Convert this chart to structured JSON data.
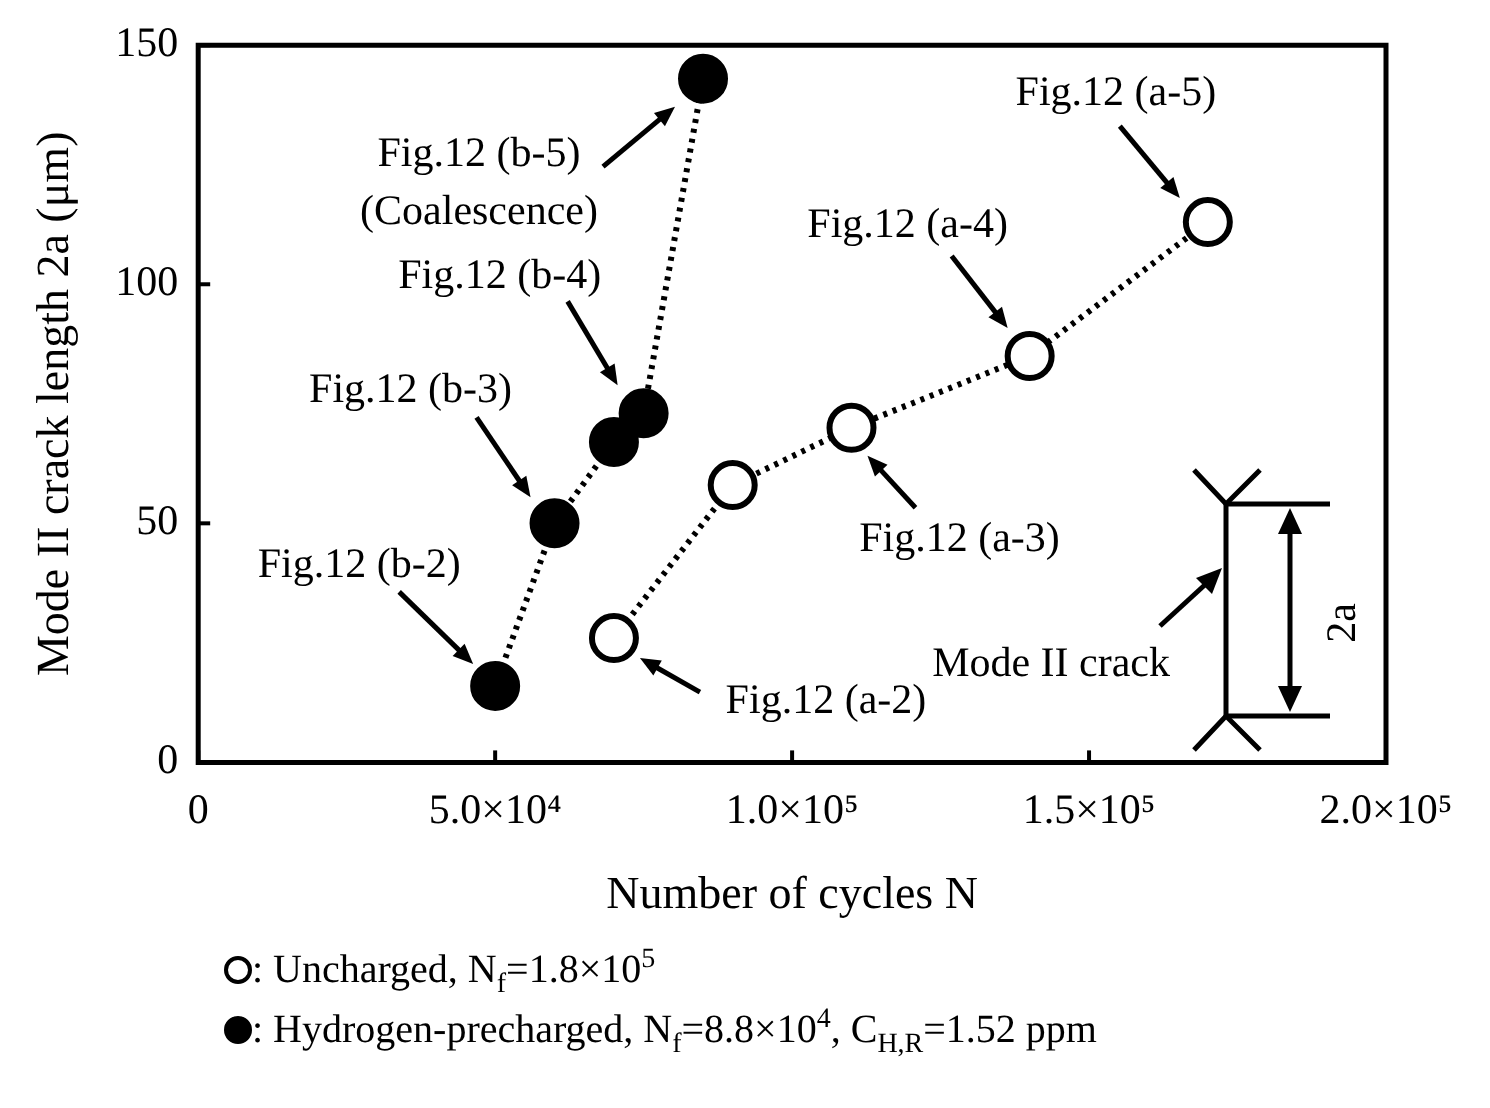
{
  "chart_data": {
    "type": "line",
    "xlabel": "Number of cycles N",
    "ylabel": "Mode II crack length 2a (μm)",
    "xlim": [
      0,
      200000
    ],
    "ylim": [
      0,
      150
    ],
    "xticks": [
      0,
      {
        "value": 50000,
        "label": "5.0×10⁴"
      },
      {
        "value": 100000,
        "label": "1.0×10⁵"
      },
      {
        "value": 150000,
        "label": "1.5×10⁵"
      },
      {
        "value": 200000,
        "label": "2.0×10⁵"
      }
    ],
    "yticks": [
      0,
      50,
      100,
      150
    ],
    "grid": false,
    "legend": "bottom",
    "marker": "circle",
    "line_style": "dotted",
    "series": [
      {
        "name": ": Uncharged, N$_{f}$=1.8×10$^{5}$",
        "color": "#000000",
        "x": [
          70000,
          90000,
          110000,
          140000,
          170000
        ],
        "values": [
          26,
          58,
          70,
          85,
          113
        ]
      },
      {
        "name": ": Hydrogen-precharged, N$_{f}$=8.8×10$^{4}$, C$_{H,R}$=1.52 ppm",
        "color": "#000000",
        "x": [
          50000,
          60000,
          70000,
          75000,
          85000
        ],
        "values": [
          16,
          50,
          67,
          73,
          143
        ]
      }
    ],
    "annotations": [
      {
        "text": "Fig.12 (b-2)",
        "x": 50000,
        "y": 16
      },
      {
        "text": "Fig.12 (b-3)",
        "x": 60000,
        "y": 50
      },
      {
        "text": "Fig.12 (b-4)",
        "x": 75000,
        "y": 73
      },
      {
        "text": "Fig.12 (b-5)\n(Coalescence)",
        "x": 85000,
        "y": 143
      },
      {
        "text": "Fig.12 (a-2)",
        "x": 70000,
        "y": 26
      },
      {
        "text": "Fig.12 (a-3)",
        "x": 110000,
        "y": 70
      },
      {
        "text": "Fig.12 (a-4)",
        "x": 140000,
        "y": 85
      },
      {
        "text": "Fig.12 (a-5)",
        "x": 170000,
        "y": 113
      },
      "Mode II crack",
      "2a"
    ]
  }
}
